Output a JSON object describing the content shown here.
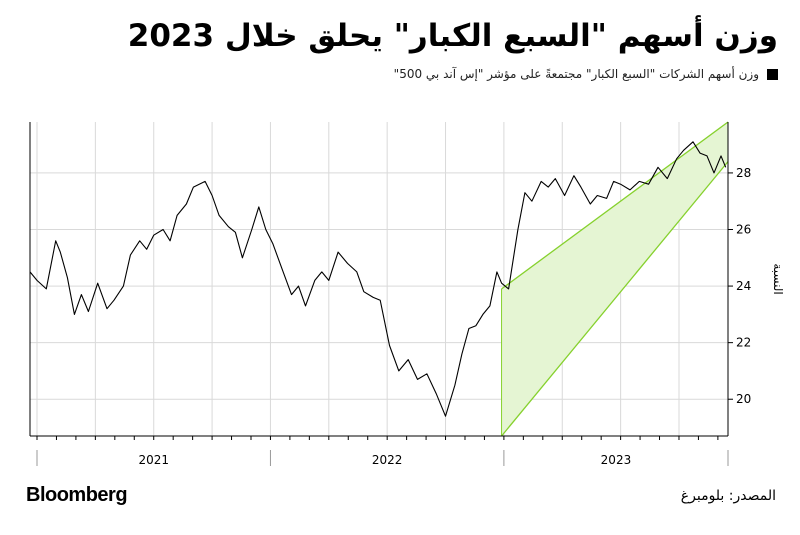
{
  "title": "وزن أسهم \"السبع الكبار\" يحلق خلال 2023",
  "legend": {
    "label": "وزن أسهم الشركات \"السبع الكبار\" مجتمعةً على مؤشر \"إس آند بي 500\"",
    "color": "#000000"
  },
  "source": "المصدر: بلومبرغ",
  "brand": "Bloomberg",
  "colors": {
    "line": "#000000",
    "channel_fill": "#e5f5d3",
    "channel_edge": "#86d12d",
    "grid": "#d9d9d9",
    "axis": "#000000"
  },
  "chart_data": {
    "type": "line",
    "title": "وزن أسهم \"السبع الكبار\" يحلق خلال 2023",
    "xlabel": "",
    "ylabel": "النسبة",
    "ylim": [
      18.7,
      29.8
    ],
    "yticks": [
      "20",
      "22",
      "24",
      "26",
      "28"
    ],
    "ytick_values": [
      20,
      22,
      24,
      26,
      28
    ],
    "xlim": [
      2020.97,
      2023.96
    ],
    "xticks": [
      "2021",
      "2022",
      "2023"
    ],
    "x_year_boundaries": [
      2021,
      2022,
      2023,
      2024
    ],
    "grid": true,
    "legend_position": "top-right",
    "series": [
      {
        "name": "وزن أسهم الشركات \"السبع الكبار\" مجتمعةً على مؤشر \"إس آند بي 500\"",
        "x": [
          2020.97,
          2021.0,
          2021.04,
          2021.08,
          2021.1,
          2021.13,
          2021.16,
          2021.19,
          2021.22,
          2021.26,
          2021.3,
          2021.33,
          2021.37,
          2021.4,
          2021.44,
          2021.47,
          2021.5,
          2021.54,
          2021.57,
          2021.6,
          2021.64,
          2021.67,
          2021.72,
          2021.75,
          2021.78,
          2021.82,
          2021.85,
          2021.88,
          2021.92,
          2021.95,
          2021.98,
          2022.01,
          2022.05,
          2022.09,
          2022.12,
          2022.15,
          2022.19,
          2022.22,
          2022.25,
          2022.29,
          2022.33,
          2022.37,
          2022.4,
          2022.44,
          2022.47,
          2022.51,
          2022.55,
          2022.59,
          2022.63,
          2022.67,
          2022.71,
          2022.75,
          2022.79,
          2022.82,
          2022.85,
          2022.88,
          2022.91,
          2022.94,
          2022.97,
          2022.99,
          2023.02,
          2023.06,
          2023.09,
          2023.12,
          2023.16,
          2023.19,
          2023.22,
          2023.26,
          2023.3,
          2023.33,
          2023.37,
          2023.4,
          2023.44,
          2023.47,
          2023.5,
          2023.54,
          2023.58,
          2023.62,
          2023.66,
          2023.7,
          2023.74,
          2023.77,
          2023.81,
          2023.84,
          2023.87,
          2023.9,
          2023.93,
          2023.95
        ],
        "y": [
          24.5,
          24.2,
          23.9,
          25.6,
          25.2,
          24.3,
          23.0,
          23.7,
          23.1,
          24.1,
          23.2,
          23.5,
          24.0,
          25.1,
          25.6,
          25.3,
          25.8,
          26.0,
          25.6,
          26.5,
          26.9,
          27.5,
          27.7,
          27.2,
          26.5,
          26.1,
          25.9,
          25.0,
          26.0,
          26.8,
          26.0,
          25.5,
          24.6,
          23.7,
          24.0,
          23.3,
          24.2,
          24.5,
          24.2,
          25.2,
          24.8,
          24.5,
          23.8,
          23.6,
          23.5,
          21.9,
          21.0,
          21.4,
          20.7,
          20.9,
          20.2,
          19.4,
          20.5,
          21.6,
          22.5,
          22.6,
          23.0,
          23.3,
          24.5,
          24.1,
          23.9,
          26.0,
          27.3,
          27.0,
          27.7,
          27.5,
          27.8,
          27.2,
          27.9,
          27.5,
          26.9,
          27.2,
          27.1,
          27.7,
          27.6,
          27.4,
          27.7,
          27.6,
          28.2,
          27.8,
          28.5,
          28.8,
          29.1,
          28.7,
          28.6,
          28.0,
          28.6,
          28.2
        ]
      }
    ],
    "channel": {
      "x": [
        2022.99,
        2023.96
      ],
      "upper": [
        23.9,
        29.8
      ],
      "lower": [
        18.7,
        28.4
      ]
    }
  }
}
